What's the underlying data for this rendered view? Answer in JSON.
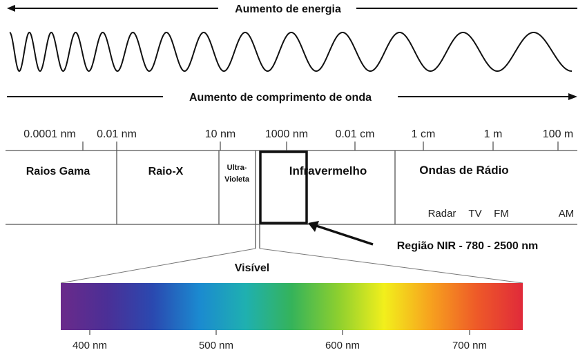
{
  "energy_arrow": {
    "label": "Aumento de energia"
  },
  "wavelength_arrow": {
    "label": "Aumento de comprimento de onda"
  },
  "scale_ticks": [
    {
      "label": "0.0001 nm"
    },
    {
      "label": "0.01 nm"
    },
    {
      "label": "10 nm"
    },
    {
      "label": "1000 nm"
    },
    {
      "label": "0.01 cm"
    },
    {
      "label": "1 cm"
    },
    {
      "label": "1 m"
    },
    {
      "label": "100 m"
    }
  ],
  "bands": [
    {
      "label": "Raios Gama"
    },
    {
      "label": "Raio-X"
    },
    {
      "label": "Ultra-"
    },
    {
      "label": "Violeta"
    },
    {
      "label": "Infravermelho"
    },
    {
      "label": "Ondas de Rádio"
    }
  ],
  "radio_subbands": [
    {
      "label": "Radar"
    },
    {
      "label": "TV"
    },
    {
      "label": "FM"
    },
    {
      "label": "AM"
    }
  ],
  "nir_callout": {
    "label": "Região NIR - 780 - 2500 nm"
  },
  "visible": {
    "label": "Visível",
    "ticks": [
      {
        "label": "400 nm"
      },
      {
        "label": "500 nm"
      },
      {
        "label": "600 nm"
      },
      {
        "label": "700 nm"
      }
    ]
  },
  "colors": {
    "outline": "#111111",
    "gradient": [
      "#6a2a8a",
      "#4b2f96",
      "#2a49b0",
      "#1b8ad0",
      "#1fb0b0",
      "#35b35a",
      "#8ccf2f",
      "#f2ef1c",
      "#f7a21e",
      "#ee5a28",
      "#e02a3a"
    ]
  }
}
